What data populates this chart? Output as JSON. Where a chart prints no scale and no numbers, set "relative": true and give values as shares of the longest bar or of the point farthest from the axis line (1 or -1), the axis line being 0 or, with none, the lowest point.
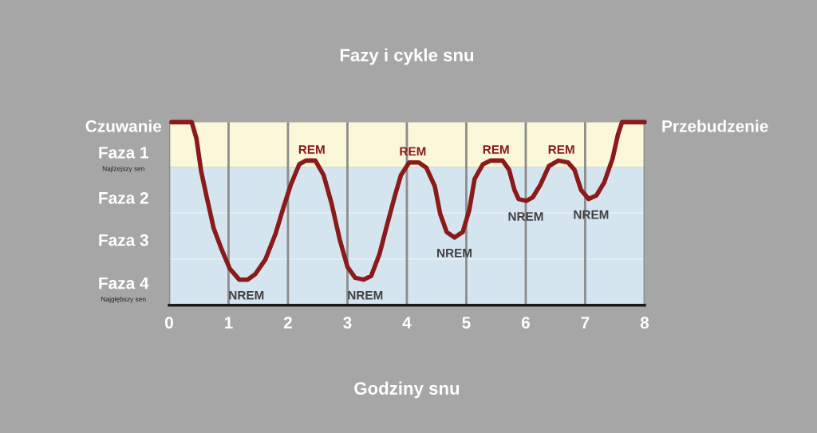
{
  "chart_data": {
    "type": "line",
    "title": "Fazy i cykle snu",
    "xlabel": "Godziny snu",
    "relative": true,
    "x": [
      0.04,
      0.38,
      0.46,
      0.54,
      0.64,
      0.75,
      0.89,
      1.02,
      1.18,
      1.32,
      1.45,
      1.62,
      1.79,
      1.92,
      2.05,
      2.19,
      2.3,
      2.46,
      2.6,
      2.73,
      2.87,
      3.0,
      3.13,
      3.27,
      3.4,
      3.54,
      3.66,
      3.8,
      3.9,
      4.04,
      4.2,
      4.33,
      4.47,
      4.56,
      4.67,
      4.8,
      4.94,
      5.05,
      5.14,
      5.28,
      5.41,
      5.61,
      5.72,
      5.81,
      5.88,
      6.01,
      6.12,
      6.25,
      6.39,
      6.55,
      6.71,
      6.82,
      6.93,
      7.06,
      7.19,
      7.32,
      7.46,
      7.55,
      7.62,
      8.0
    ],
    "series": [
      {
        "color": "#8b1a1a",
        "values": [
          1,
          1,
          0.91,
          0.73,
          0.58,
          0.42,
          0.3,
          0.2,
          0.14,
          0.14,
          0.17,
          0.25,
          0.39,
          0.53,
          0.66,
          0.77,
          0.79,
          0.79,
          0.71,
          0.56,
          0.36,
          0.21,
          0.15,
          0.14,
          0.16,
          0.28,
          0.43,
          0.6,
          0.71,
          0.78,
          0.78,
          0.75,
          0.65,
          0.5,
          0.4,
          0.37,
          0.4,
          0.52,
          0.69,
          0.77,
          0.79,
          0.79,
          0.74,
          0.63,
          0.58,
          0.57,
          0.59,
          0.66,
          0.76,
          0.79,
          0.78,
          0.74,
          0.63,
          0.58,
          0.6,
          0.67,
          0.8,
          0.93,
          1,
          1
        ]
      }
    ],
    "xlim": [
      0,
      8
    ],
    "xticks": [
      0,
      1,
      2,
      3,
      4,
      5,
      6,
      7,
      8
    ],
    "bands": [
      {
        "axis": "y",
        "from": 0.756,
        "to": 1,
        "color": "#fbf7d9"
      },
      {
        "axis": "y",
        "from": 0,
        "to": 0.756,
        "color": "#d5e5f0"
      }
    ],
    "ref_lines": [
      {
        "axis": "y",
        "value": 0.252,
        "color": "#e6eef5"
      },
      {
        "axis": "y",
        "value": 0.504,
        "color": "#e6eef5"
      }
    ],
    "grid": "x",
    "line_style": "solid",
    "marker": "none",
    "annotations": [
      "Czuwanie",
      "Faza 1",
      "Najlżejszy sen",
      "Faza 2",
      "Faza 3",
      "Faza 4",
      "Najgłębszy sen",
      "Przebudzenie",
      {
        "text": "REM",
        "x": 2.4,
        "y": 0.79
      },
      {
        "text": "REM",
        "x": 4.1,
        "y": 0.78
      },
      {
        "text": "REM",
        "x": 5.5,
        "y": 0.79
      },
      {
        "text": "REM",
        "x": 6.6,
        "y": 0.79
      },
      {
        "text": "NREM",
        "x": 1.3,
        "y": 0.14
      },
      {
        "text": "NREM",
        "x": 3.3,
        "y": 0.14
      },
      {
        "text": "NREM",
        "x": 4.8,
        "y": 0.37
      },
      {
        "text": "NREM",
        "x": 6.0,
        "y": 0.57
      },
      {
        "text": "NREM",
        "x": 7.1,
        "y": 0.58
      }
    ]
  }
}
